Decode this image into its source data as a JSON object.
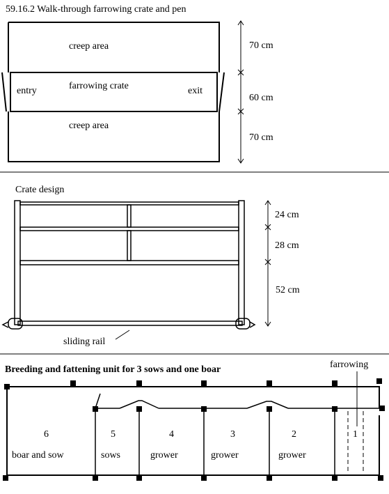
{
  "section1": {
    "title": "59.16.2  Walk-through farrowing crate and pen",
    "creep_top": "creep area",
    "crate_label": "farrowing crate",
    "entry": "entry",
    "exit": "exit",
    "creep_bottom": "creep area",
    "dim_top": "70 cm",
    "dim_mid": "60 cm",
    "dim_bottom": "70 cm"
  },
  "section2": {
    "title": "Crate design",
    "dim_1": "24 cm",
    "dim_2": "28 cm",
    "dim_3": "52 cm",
    "rail_label": "sliding rail"
  },
  "section3": {
    "title": "Breeding and fattening unit for 3 sows and one boar",
    "farrowing": "farrowing",
    "pens": [
      {
        "number": "6",
        "use": "boar and sow"
      },
      {
        "number": "5",
        "use": "sows"
      },
      {
        "number": "4",
        "use": "grower"
      },
      {
        "number": "3",
        "use": "grower"
      },
      {
        "number": "2",
        "use": "grower"
      },
      {
        "number": "1",
        "use": ""
      }
    ]
  }
}
